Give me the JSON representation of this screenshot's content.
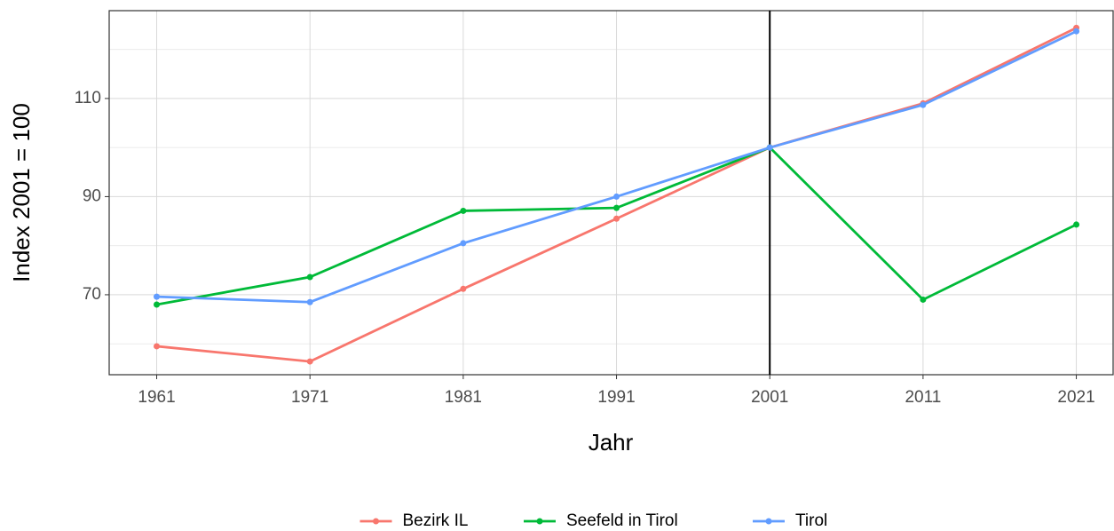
{
  "chart_data": {
    "type": "line",
    "x": [
      1961,
      1971,
      1981,
      1991,
      2001,
      2011,
      2021
    ],
    "series": [
      {
        "name": "Bezirk IL",
        "color": "#F8766D",
        "values": [
          59.5,
          56.4,
          71.2,
          85.5,
          100,
          109.0,
          124.4
        ]
      },
      {
        "name": "Seefeld in Tirol",
        "color": "#00BA38",
        "values": [
          68.0,
          73.6,
          87.1,
          87.7,
          100,
          69.0,
          84.3
        ]
      },
      {
        "name": "Tirol",
        "color": "#619CFF",
        "values": [
          69.6,
          68.5,
          80.5,
          90.0,
          100,
          108.7,
          123.7
        ]
      }
    ],
    "xlabel": "Jahr",
    "ylabel": "Index 2001 = 100",
    "xlim": [
      1957.9,
      2023.4
    ],
    "xticks": [
      1961,
      1971,
      1981,
      1991,
      2001,
      2011,
      2021
    ],
    "ylim": [
      53.7,
      127.9
    ],
    "yticks": [
      70,
      90,
      110
    ],
    "yminor": [
      60,
      80,
      100,
      120
    ],
    "vline": 2001,
    "vline_color": "#000000",
    "grid": true,
    "legend": "bottom"
  }
}
